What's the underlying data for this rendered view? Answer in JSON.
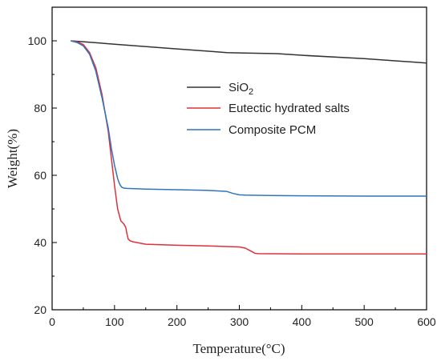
{
  "chart_data": {
    "type": "line",
    "xlabel": "Temperature(°C)",
    "ylabel": "Weight(%)",
    "xlim": [
      0,
      600
    ],
    "ylim": [
      20,
      110
    ],
    "xticks": [
      0,
      100,
      200,
      300,
      400,
      500,
      600
    ],
    "yticks": [
      20,
      40,
      60,
      80,
      100
    ],
    "grid": false,
    "legend_position": "center-right",
    "series": [
      {
        "name": "SiO2",
        "name_main": "SiO",
        "name_sub": "2",
        "color": "#333333",
        "x": [
          30,
          100,
          200,
          280,
          300,
          360,
          400,
          500,
          600
        ],
        "y": [
          100,
          99.0,
          97.6,
          96.5,
          96.4,
          96.2,
          95.7,
          94.7,
          93.4
        ]
      },
      {
        "name": "Eutectic hydrated salts",
        "color": "#e0303a",
        "x": [
          30,
          40,
          50,
          60,
          70,
          80,
          90,
          95,
          100,
          105,
          110,
          115,
          118,
          120,
          122,
          125,
          130,
          150,
          200,
          250,
          300,
          310,
          320,
          325,
          330,
          400,
          500,
          600
        ],
        "y": [
          100,
          99.7,
          98.9,
          96.5,
          92,
          84,
          73,
          65,
          57,
          50,
          46.5,
          45.5,
          44.5,
          42.5,
          41,
          40.5,
          40.2,
          39.5,
          39.2,
          39.0,
          38.7,
          38.3,
          37.3,
          36.8,
          36.7,
          36.6,
          36.6,
          36.6
        ]
      },
      {
        "name": "Composite PCM",
        "color": "#2f74c0",
        "x": [
          30,
          40,
          50,
          60,
          70,
          80,
          90,
          95,
          100,
          105,
          108,
          110,
          112,
          115,
          120,
          150,
          200,
          250,
          280,
          290,
          300,
          310,
          350,
          400,
          500,
          600
        ],
        "y": [
          100,
          99.5,
          98.5,
          96,
          91,
          83,
          74,
          68,
          63,
          59,
          57.5,
          56.8,
          56.4,
          56.2,
          56.1,
          55.9,
          55.7,
          55.5,
          55.2,
          54.6,
          54.2,
          54.1,
          54.0,
          53.9,
          53.8,
          53.8
        ]
      }
    ]
  }
}
